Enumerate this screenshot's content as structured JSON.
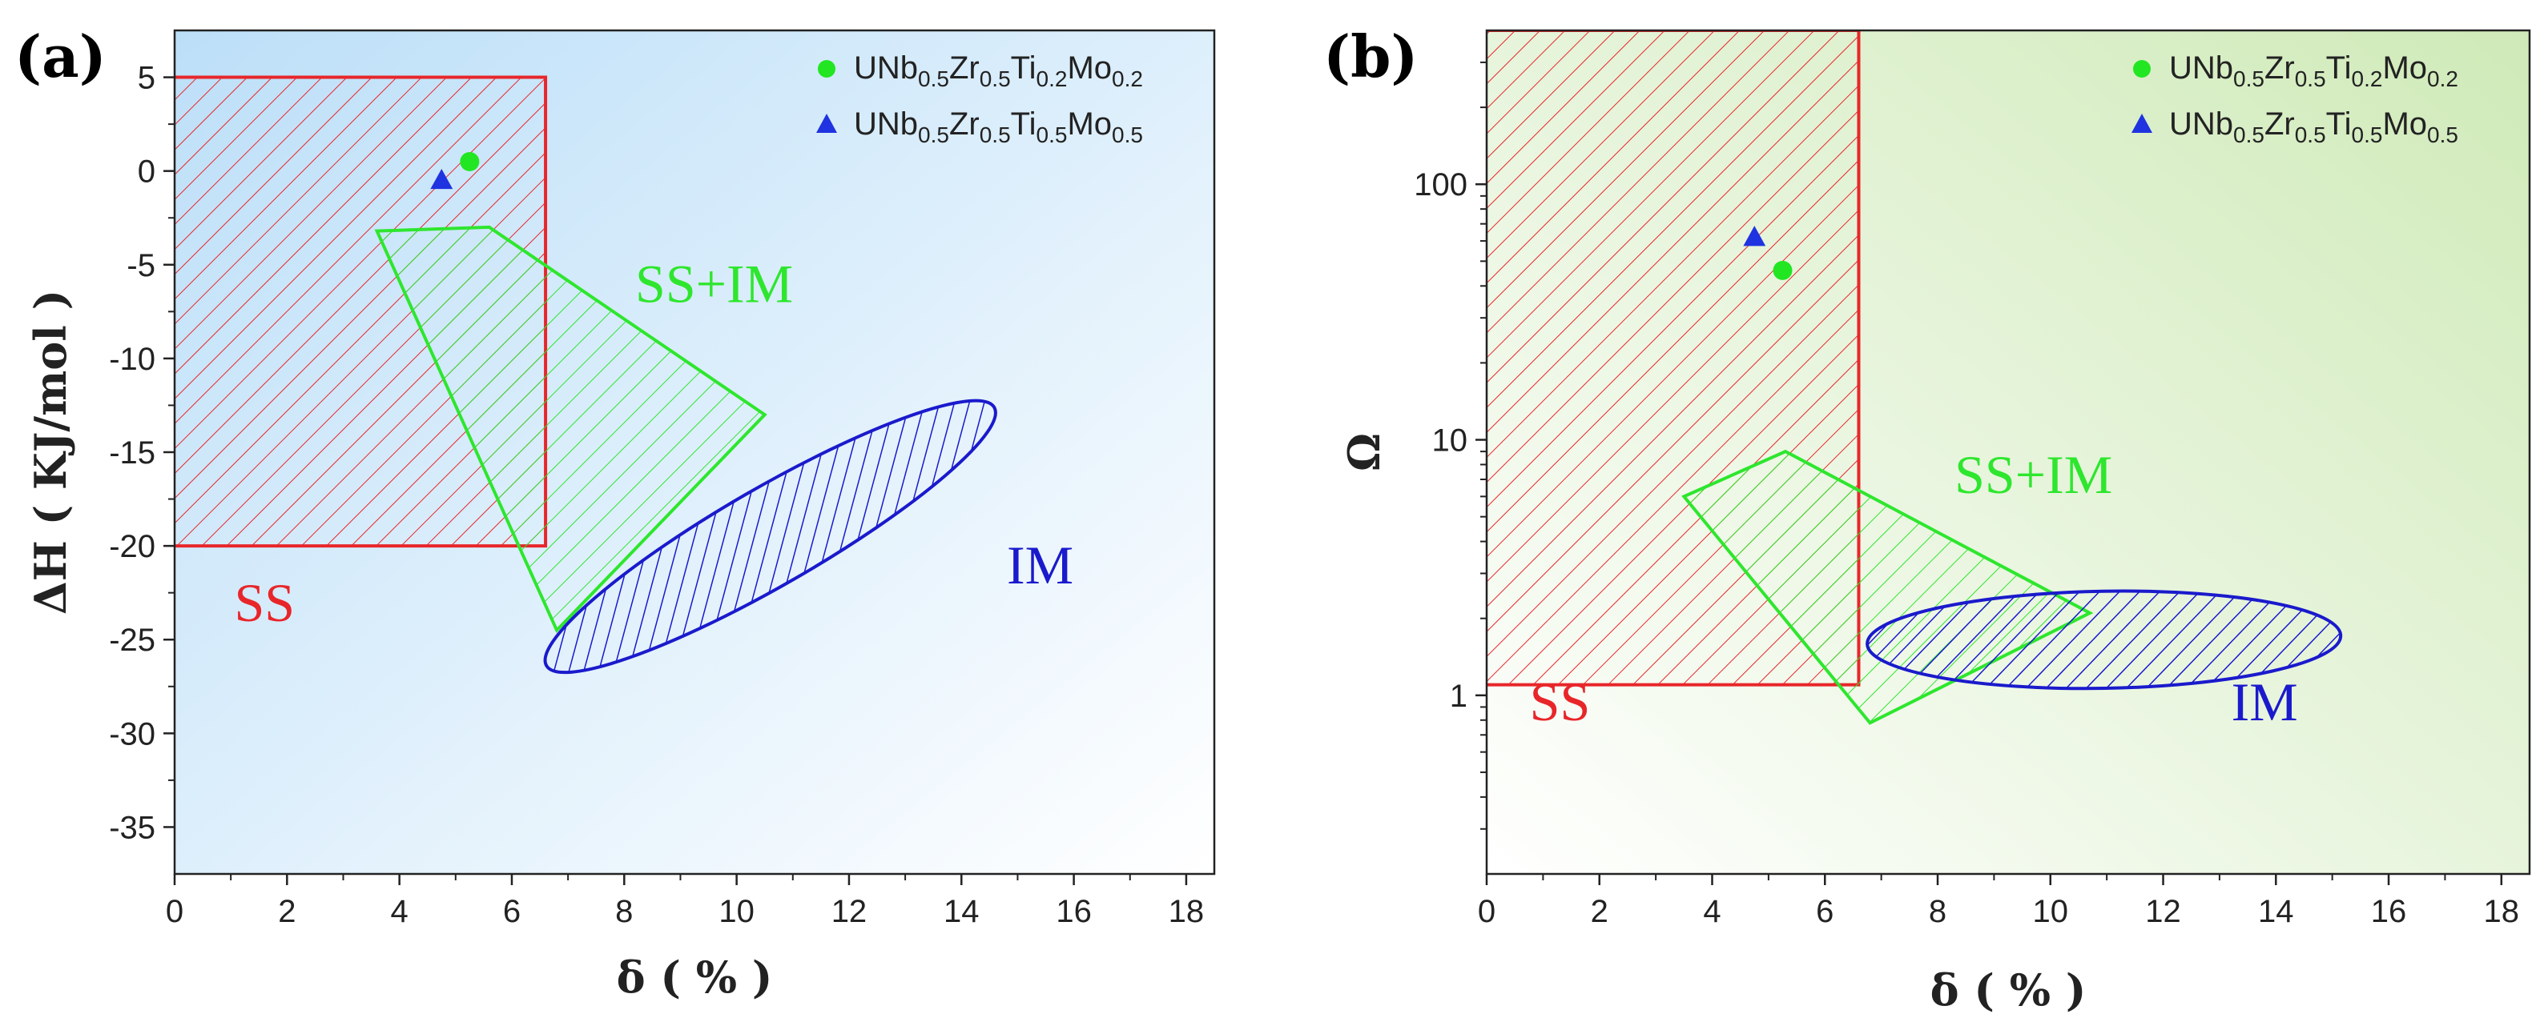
{
  "colors": {
    "ss": "#e8262a",
    "ssim": "#2ee62e",
    "im": "#1a1acc",
    "point_circle": "#22e622",
    "point_triangle": "#1f33e0",
    "bg_a_start": "#bcdff8",
    "bg_b_end": "#cfeab8"
  },
  "legend": [
    {
      "name": "UNb0.5Zr0.5Ti0.2Mo0.2",
      "prefix": "UNb",
      "parts": [
        [
          "0.5",
          "Zr"
        ],
        [
          "0.5",
          "Ti"
        ],
        [
          "0.2",
          "Mo"
        ],
        [
          "0.2",
          ""
        ]
      ],
      "marker": "circle"
    },
    {
      "name": "UNb0.5Zr0.5Ti0.5Mo0.5",
      "prefix": "UNb",
      "parts": [
        [
          "0.5",
          "Zr"
        ],
        [
          "0.5",
          "Ti"
        ],
        [
          "0.5",
          "Mo"
        ],
        [
          "0.5",
          ""
        ]
      ],
      "marker": "triangle"
    }
  ],
  "chart_data": [
    {
      "panel": "(a)",
      "type": "scatter",
      "xlabel": "δ ( % )",
      "ylabel": "ΔH ( KJ/mol )",
      "xlim": [
        0,
        18.5
      ],
      "ylim": [
        -37.5,
        7.5
      ],
      "xticks": [
        0,
        2,
        4,
        6,
        8,
        10,
        12,
        14,
        16,
        18
      ],
      "yticks": [
        5,
        0,
        -5,
        -10,
        -15,
        -20,
        -25,
        -30,
        -35
      ],
      "regions": [
        {
          "label": "SS",
          "shape": "rect",
          "x": [
            0,
            6.6
          ],
          "y": [
            -20,
            5
          ],
          "label_at": [
            1.6,
            -24
          ]
        },
        {
          "label": "SS+IM",
          "shape": "polygon",
          "points": [
            [
              3.6,
              -3.2
            ],
            [
              5.6,
              -3.0
            ],
            [
              10.5,
              -13.0
            ],
            [
              6.8,
              -24.5
            ]
          ],
          "label_at": [
            9.6,
            -7
          ]
        },
        {
          "label": "IM",
          "shape": "ellipse",
          "center": [
            10.6,
            -19.5
          ],
          "rx": 4.6,
          "ry": 2.6,
          "angle": -30,
          "label_at": [
            15.4,
            -22
          ]
        }
      ],
      "series": [
        {
          "name": "UNb0.5Zr0.5Ti0.2Mo0.2",
          "marker": "circle",
          "points": [
            [
              5.25,
              0.5
            ]
          ]
        },
        {
          "name": "UNb0.5Zr0.5Ti0.5Mo0.5",
          "marker": "triangle",
          "points": [
            [
              4.75,
              -0.5
            ]
          ]
        }
      ]
    },
    {
      "panel": "(b)",
      "type": "scatter",
      "xlabel": "δ ( % )",
      "ylabel": "Ω",
      "yscale": "log",
      "xlim": [
        0,
        18.5
      ],
      "ylim": [
        0.2,
        400
      ],
      "xticks": [
        0,
        2,
        4,
        6,
        8,
        10,
        12,
        14,
        16,
        18
      ],
      "yticks": [
        1,
        10,
        100
      ],
      "regions": [
        {
          "label": "SS",
          "shape": "rect",
          "x": [
            0,
            6.6
          ],
          "y": [
            1.1,
            400
          ],
          "label_at": [
            1.3,
            0.8
          ]
        },
        {
          "label": "SS+IM",
          "shape": "polygon",
          "points": [
            [
              3.5,
              6.0
            ],
            [
              5.3,
              9.0
            ],
            [
              10.7,
              2.1
            ],
            [
              6.8,
              0.78
            ]
          ],
          "label_at": [
            9.7,
            6.2
          ]
        },
        {
          "label": "IM",
          "shape": "ellipse",
          "center": [
            10.95,
            1.65
          ],
          "rx": 4.2,
          "ry_decades": 0.19,
          "angle": -1,
          "label_at": [
            13.8,
            0.8
          ]
        }
      ],
      "series": [
        {
          "name": "UNb0.5Zr0.5Ti0.2Mo0.2",
          "marker": "circle",
          "points": [
            [
              5.25,
              46
            ]
          ]
        },
        {
          "name": "UNb0.5Zr0.5Ti0.5Mo0.5",
          "marker": "triangle",
          "points": [
            [
              4.75,
              62
            ]
          ]
        }
      ]
    }
  ]
}
